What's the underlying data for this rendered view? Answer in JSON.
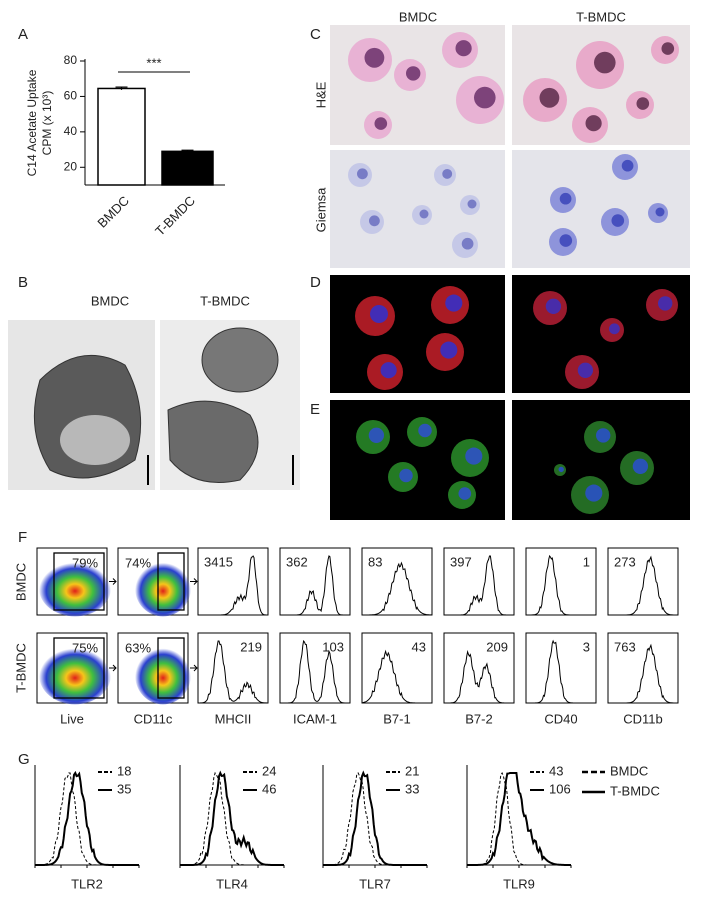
{
  "chart_data": {
    "type": "bar",
    "panel_label": "A",
    "y_label_lines": [
      "C14 Acetate Uptake",
      "CPM (x 10³)"
    ],
    "categories": [
      "BMDC",
      "T-BMDC"
    ],
    "values": [
      64.5,
      29
    ],
    "errors": [
      0.8,
      0.6
    ],
    "colors": [
      "#ffffff",
      "#000000"
    ],
    "ylim": [
      10,
      80
    ],
    "yticks": [
      20,
      40,
      60,
      80
    ],
    "annotation": "***"
  },
  "panel_b": {
    "label": "B",
    "columns": [
      "BMDC",
      "T-BMDC"
    ]
  },
  "panel_c": {
    "label": "C",
    "columns": [
      "BMDC",
      "T-BMDC"
    ],
    "rows": [
      "H&E",
      "Giemsa"
    ]
  },
  "panel_d": {
    "label": "D"
  },
  "panel_e": {
    "label": "E"
  },
  "panel_f": {
    "label": "F",
    "rows": [
      "BMDC",
      "T-BMDC"
    ],
    "markers": [
      "Live",
      "CD11c",
      "MHCII",
      "ICAM-1",
      "B7-1",
      "B7-2",
      "CD40",
      "CD11b"
    ],
    "gate_percent": [
      [
        "79%",
        "74%"
      ],
      [
        "75%",
        "63%"
      ]
    ],
    "mfi": [
      [
        3415,
        362,
        83,
        397,
        1,
        273
      ],
      [
        219,
        103,
        43,
        209,
        3,
        763
      ]
    ]
  },
  "panel_g": {
    "label": "G",
    "markers": [
      "TLR2",
      "TLR4",
      "TLR7",
      "TLR9"
    ],
    "mfi_bmdc": [
      18,
      24,
      21,
      43
    ],
    "mfi_tbmdc": [
      35,
      46,
      33,
      106
    ],
    "legend": [
      "BMDC",
      "T-BMDC"
    ]
  }
}
